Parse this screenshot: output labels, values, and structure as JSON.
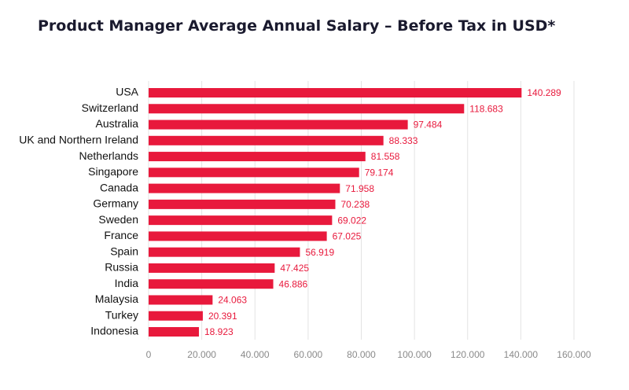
{
  "chart_data": {
    "type": "bar",
    "orientation": "horizontal",
    "title": "Product Manager Average Annual Salary – Before Tax in USD*",
    "categories": [
      "USA",
      "Switzerland",
      "Australia",
      "UK and Northern Ireland",
      "Netherlands",
      "Singapore",
      "Canada",
      "Germany",
      "Sweden",
      "France",
      "Spain",
      "Russia",
      "India",
      "Malaysia",
      "Turkey",
      "Indonesia"
    ],
    "values": [
      140289,
      118683,
      97484,
      88333,
      81558,
      79174,
      71958,
      70238,
      69022,
      67025,
      56919,
      47425,
      46886,
      24063,
      20391,
      18923
    ],
    "value_labels": [
      "140.289",
      "118.683",
      "97.484",
      "88.333",
      "81.558",
      "79.174",
      "71.958",
      "70.238",
      "69.022",
      "67.025",
      "56.919",
      "47.425",
      "46.886",
      "24.063",
      "20.391",
      "18.923"
    ],
    "xlim": [
      0,
      160000
    ],
    "xticks": [
      0,
      20000,
      40000,
      60000,
      80000,
      100000,
      120000,
      140000,
      160000
    ],
    "xtick_labels": [
      "0",
      "20.000",
      "40.000",
      "60.000",
      "80.000",
      "100.000",
      "120.000",
      "140.000",
      "160.000"
    ],
    "grid": "vertical",
    "legend": "none",
    "colors": {
      "bar": "#e8193c",
      "value_label": "#e8193c",
      "grid": "#e3e3e3",
      "tick_label": "#8a8a8a"
    }
  }
}
